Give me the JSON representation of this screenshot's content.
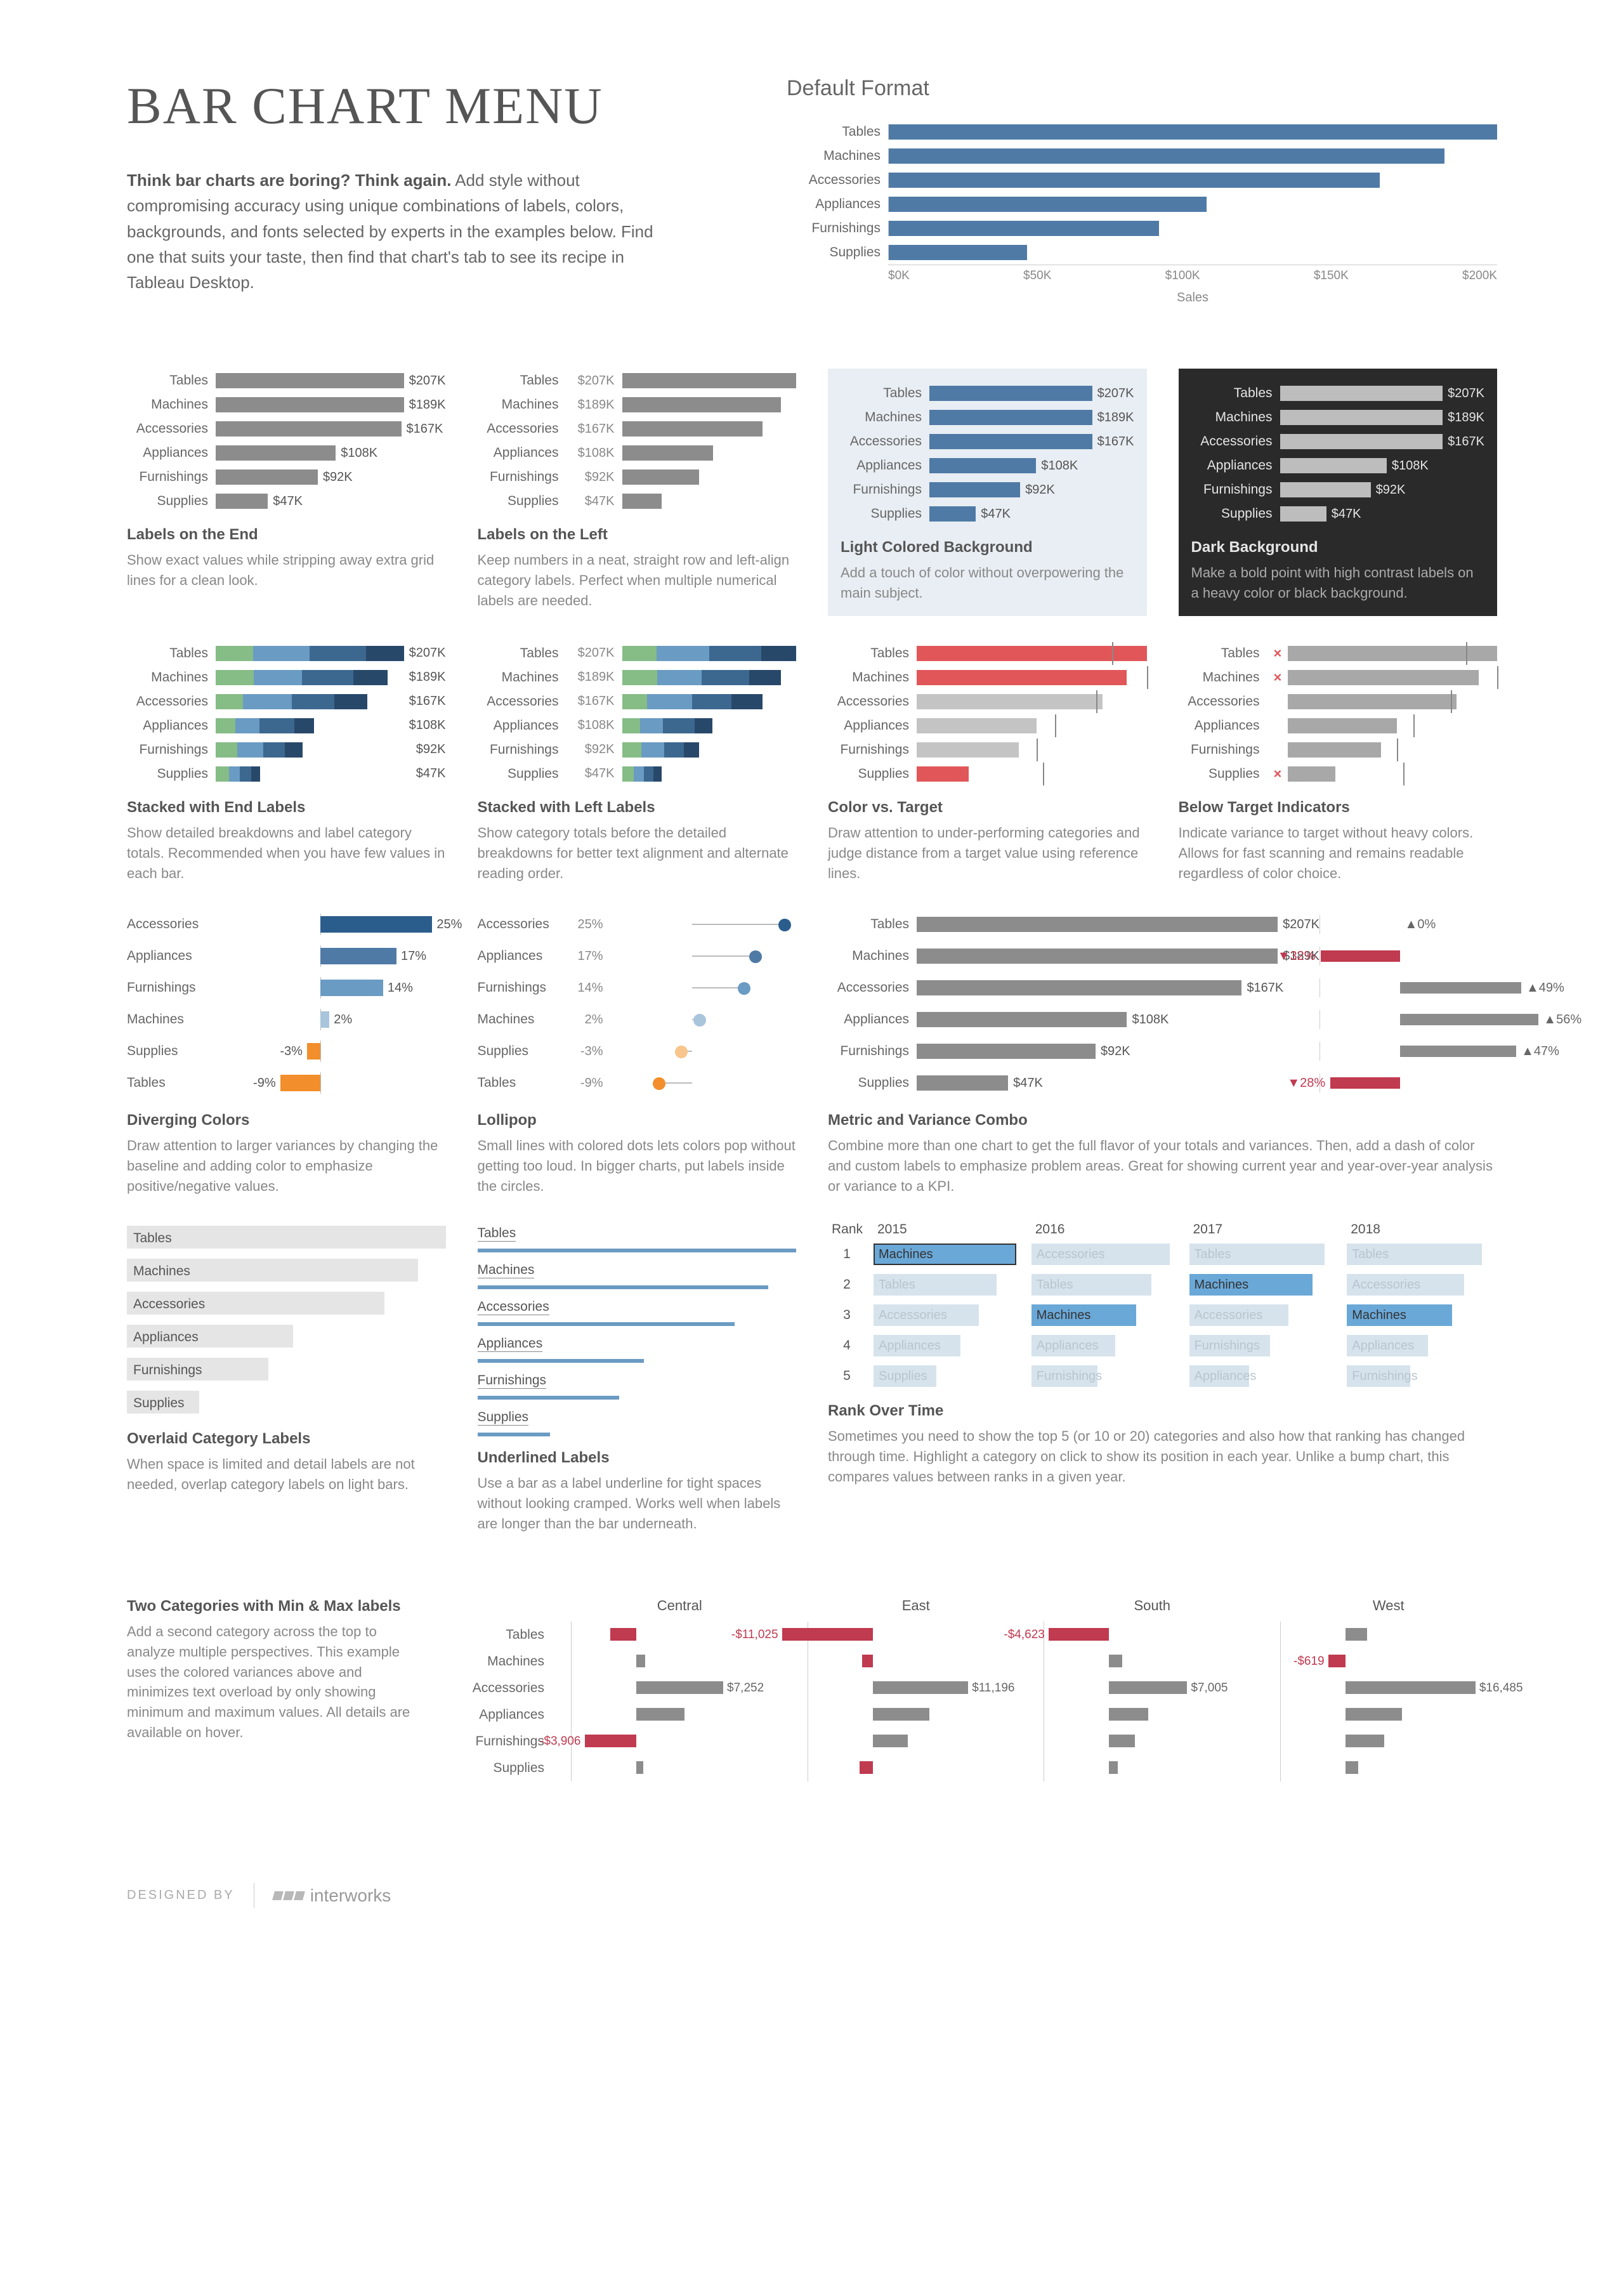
{
  "page_title": "BAR CHART MENU",
  "intro_bold": "Think bar charts are boring? Think again.",
  "intro_rest": " Add style without compromising accuracy using unique combinations of labels, colors, backgrounds, and fonts selected by experts in the examples below. Find one that suits your taste, then find that chart's tab to see its recipe in Tableau Desktop.",
  "categories": [
    "Tables",
    "Machines",
    "Accessories",
    "Appliances",
    "Furnishings",
    "Supplies"
  ],
  "values_k": [
    207,
    189,
    167,
    108,
    92,
    47
  ],
  "value_labels": [
    "$207K",
    "$189K",
    "$167K",
    "$108K",
    "$92K",
    "$47K"
  ],
  "max_value_k": 207,
  "default_format": {
    "title": "Default Format",
    "bar_color": "#4f7aa6",
    "axis_ticks": [
      "$0K",
      "$50K",
      "$100K",
      "$150K",
      "$200K"
    ],
    "axis_label": "Sales",
    "grid_color": "#dddddd",
    "label_fontsize": 21
  },
  "labels_end": {
    "title": "Labels on the End",
    "desc": "Show exact values while stripping away extra grid lines for a clean look.",
    "bar_color": "#8c8c8c"
  },
  "labels_left": {
    "title": "Labels on the Left",
    "desc": "Keep numbers in a neat, straight row and left-align category labels. Perfect when multiple numerical labels are needed.",
    "bar_color": "#8c8c8c"
  },
  "light_bg": {
    "title": "Light Colored Background",
    "desc": "Add a touch of color without overpowering the main subject.",
    "bg_color": "#e8eef3",
    "bar_color": "#4f7aa6"
  },
  "dark_bg": {
    "title": "Dark Background",
    "desc": "Make a bold point with high contrast labels on a heavy color or black background.",
    "bg_color": "#2a2a2a",
    "bar_color": "#bdbdbd"
  },
  "stacked_end": {
    "title": "Stacked with End Labels",
    "desc": "Show detailed breakdowns and label category totals. Recommended when you have few values in each bar.",
    "seg_colors": [
      "#86bc86",
      "#6a9bc3",
      "#3c6890",
      "#28486a"
    ],
    "segments": [
      [
        0.2,
        0.3,
        0.3,
        0.2
      ],
      [
        0.22,
        0.28,
        0.3,
        0.2
      ],
      [
        0.18,
        0.32,
        0.28,
        0.22
      ],
      [
        0.2,
        0.25,
        0.35,
        0.2
      ],
      [
        0.25,
        0.3,
        0.25,
        0.2
      ],
      [
        0.3,
        0.25,
        0.25,
        0.2
      ]
    ]
  },
  "stacked_left": {
    "title": "Stacked with Left Labels",
    "desc": "Show category totals before the detailed breakdowns for better text alignment and alternate reading order.",
    "seg_colors": [
      "#86bc86",
      "#6a9bc3",
      "#3c6890",
      "#28486a"
    ]
  },
  "color_target": {
    "title": "Color vs. Target",
    "desc": "Draw attention to under-performing categories and judge distance from a target value using reference lines.",
    "under_color": "#e15759",
    "ok_color": "#c4c4c4",
    "targets_pct": [
      85,
      100,
      78,
      60,
      52,
      55
    ],
    "under_flags": [
      true,
      true,
      false,
      false,
      false,
      true
    ]
  },
  "below_target": {
    "title": "Below Target Indicators",
    "desc": "Indicate variance to target without heavy colors. Allows for fast scanning and remains readable regardless of color choice.",
    "bar_color": "#a8a8a8",
    "x_flags": [
      true,
      true,
      false,
      false,
      false,
      true
    ]
  },
  "diverging": {
    "title": "Diverging Colors",
    "desc": "Draw attention to larger variances by changing the baseline and adding color to emphasize positive/negative values.",
    "order": [
      "Accessories",
      "Appliances",
      "Furnishings",
      "Machines",
      "Supplies",
      "Tables"
    ],
    "pct": [
      25,
      17,
      14,
      2,
      -3,
      -9
    ],
    "pct_labels": [
      "25%",
      "17%",
      "14%",
      "2%",
      "-3%",
      "-9%"
    ],
    "pos_colors": [
      "#2b5d8c",
      "#4f7aa6",
      "#6a9bc3",
      "#a9c5db"
    ],
    "neg_color": "#f28e2b",
    "baseline_pct_of_track": 44
  },
  "lollipop": {
    "title": "Lollipop",
    "desc": "Small lines with colored dots lets colors pop without getting too loud. In bigger charts, put labels inside the circles.",
    "line_color": "#bbbbbb",
    "dot_colors": [
      "#2b5d8c",
      "#4f7aa6",
      "#6a9bc3",
      "#a9c5db",
      "#f8c58c",
      "#f28e2b"
    ]
  },
  "metric_variance": {
    "title": "Metric and Variance Combo",
    "desc": "Combine more than one chart to get the full flavor of your totals and variances. Then, add a dash of color and custom labels to emphasize problem areas. Great for showing current year and year-over-year analysis or variance to a KPI.",
    "bar_color": "#8c8c8c",
    "pos_color": "#8c8c8c",
    "neg_color": "#c03a50",
    "variance_pct": [
      0,
      -32,
      49,
      56,
      47,
      -28
    ],
    "variance_labels": [
      "▲0%",
      "▼32%",
      "▲49%",
      "▲56%",
      "▲47%",
      "▼28%"
    ]
  },
  "overlaid": {
    "title": "Overlaid Category Labels",
    "desc": "When space is limited and detail labels are not needed, overlap category labels on light bars.",
    "bar_color": "#e5e5e5"
  },
  "underlined": {
    "title": "Underlined Labels",
    "desc": "Use a bar as a label underline for tight spaces without looking cramped. Works well when labels are longer than the bar underneath.",
    "bar_color": "#6a9bc3"
  },
  "rank": {
    "title": "Rank Over Time",
    "desc": "Sometimes you need to show the top 5 (or 10 or 20) categories and also how that ranking has changed through time. Highlight a category on click to show its position in each year. Unlike a bump chart, this compares values between ranks in a given year.",
    "rank_head": "Rank",
    "years": [
      "2015",
      "2016",
      "2017",
      "2018"
    ],
    "highlight": "Machines",
    "hi_color": "#6aa8d8",
    "dim_bar_color": "#d6e3ec",
    "dim_text_color": "#b8c5d0",
    "columns": [
      [
        {
          "l": "Machines",
          "hi": true,
          "w": 95,
          "box": true
        },
        {
          "l": "Tables",
          "hi": false,
          "w": 82
        },
        {
          "l": "Accessories",
          "hi": false,
          "w": 70
        },
        {
          "l": "Appliances",
          "hi": false,
          "w": 58
        },
        {
          "l": "Supplies",
          "hi": false,
          "w": 42
        }
      ],
      [
        {
          "l": "Accessories",
          "hi": false,
          "w": 92
        },
        {
          "l": "Tables",
          "hi": false,
          "w": 80
        },
        {
          "l": "Machines",
          "hi": true,
          "w": 70
        },
        {
          "l": "Appliances",
          "hi": false,
          "w": 56
        },
        {
          "l": "Furnishings",
          "hi": false,
          "w": 44
        }
      ],
      [
        {
          "l": "Tables",
          "hi": false,
          "w": 90
        },
        {
          "l": "Machines",
          "hi": true,
          "w": 82
        },
        {
          "l": "Accessories",
          "hi": false,
          "w": 66
        },
        {
          "l": "Furnishings",
          "hi": false,
          "w": 54
        },
        {
          "l": "Appliances",
          "hi": false,
          "w": 40
        }
      ],
      [
        {
          "l": "Tables",
          "hi": false,
          "w": 90
        },
        {
          "l": "Accessories",
          "hi": false,
          "w": 78
        },
        {
          "l": "Machines",
          "hi": true,
          "w": 70
        },
        {
          "l": "Appliances",
          "hi": false,
          "w": 54
        },
        {
          "l": "Furnishings",
          "hi": false,
          "w": 42
        }
      ]
    ]
  },
  "two_cat": {
    "title": "Two Categories with Min & Max labels",
    "desc": "Add a second category across the top to analyze multiple perspectives. This example uses the colored variances above and minimizes text overload by only showing minimum and maximum values. All details are available on hover.",
    "regions": [
      "Central",
      "East",
      "South",
      "West"
    ],
    "row_cats": [
      "Tables",
      "Machines",
      "Accessories",
      "Appliances",
      "Furnishings",
      "Supplies"
    ],
    "pos_color": "#8c8c8c",
    "neg_color": "#c03a50",
    "cells": {
      "Central": [
        [
          -1,
          12,
          ""
        ],
        [
          1,
          4,
          ""
        ],
        [
          1,
          40,
          "$7,252"
        ],
        [
          1,
          22,
          ""
        ],
        [
          -1,
          24,
          "-$3,906"
        ],
        [
          1,
          3,
          ""
        ]
      ],
      "East": [
        [
          -1,
          42,
          "-$11,025"
        ],
        [
          -1,
          5,
          ""
        ],
        [
          1,
          44,
          "$11,196"
        ],
        [
          1,
          26,
          ""
        ],
        [
          1,
          16,
          ""
        ],
        [
          -1,
          6,
          ""
        ]
      ],
      "South": [
        [
          -1,
          28,
          "-$4,623"
        ],
        [
          1,
          6,
          ""
        ],
        [
          1,
          36,
          "$7,005"
        ],
        [
          1,
          18,
          ""
        ],
        [
          1,
          12,
          ""
        ],
        [
          1,
          4,
          ""
        ]
      ],
      "West": [
        [
          1,
          10,
          ""
        ],
        [
          -1,
          8,
          "-$619"
        ],
        [
          1,
          60,
          "$16,485"
        ],
        [
          1,
          26,
          ""
        ],
        [
          1,
          18,
          ""
        ],
        [
          1,
          6,
          ""
        ]
      ]
    }
  },
  "footer": {
    "designed_by": "DESIGNED BY",
    "brand": "interworks"
  }
}
